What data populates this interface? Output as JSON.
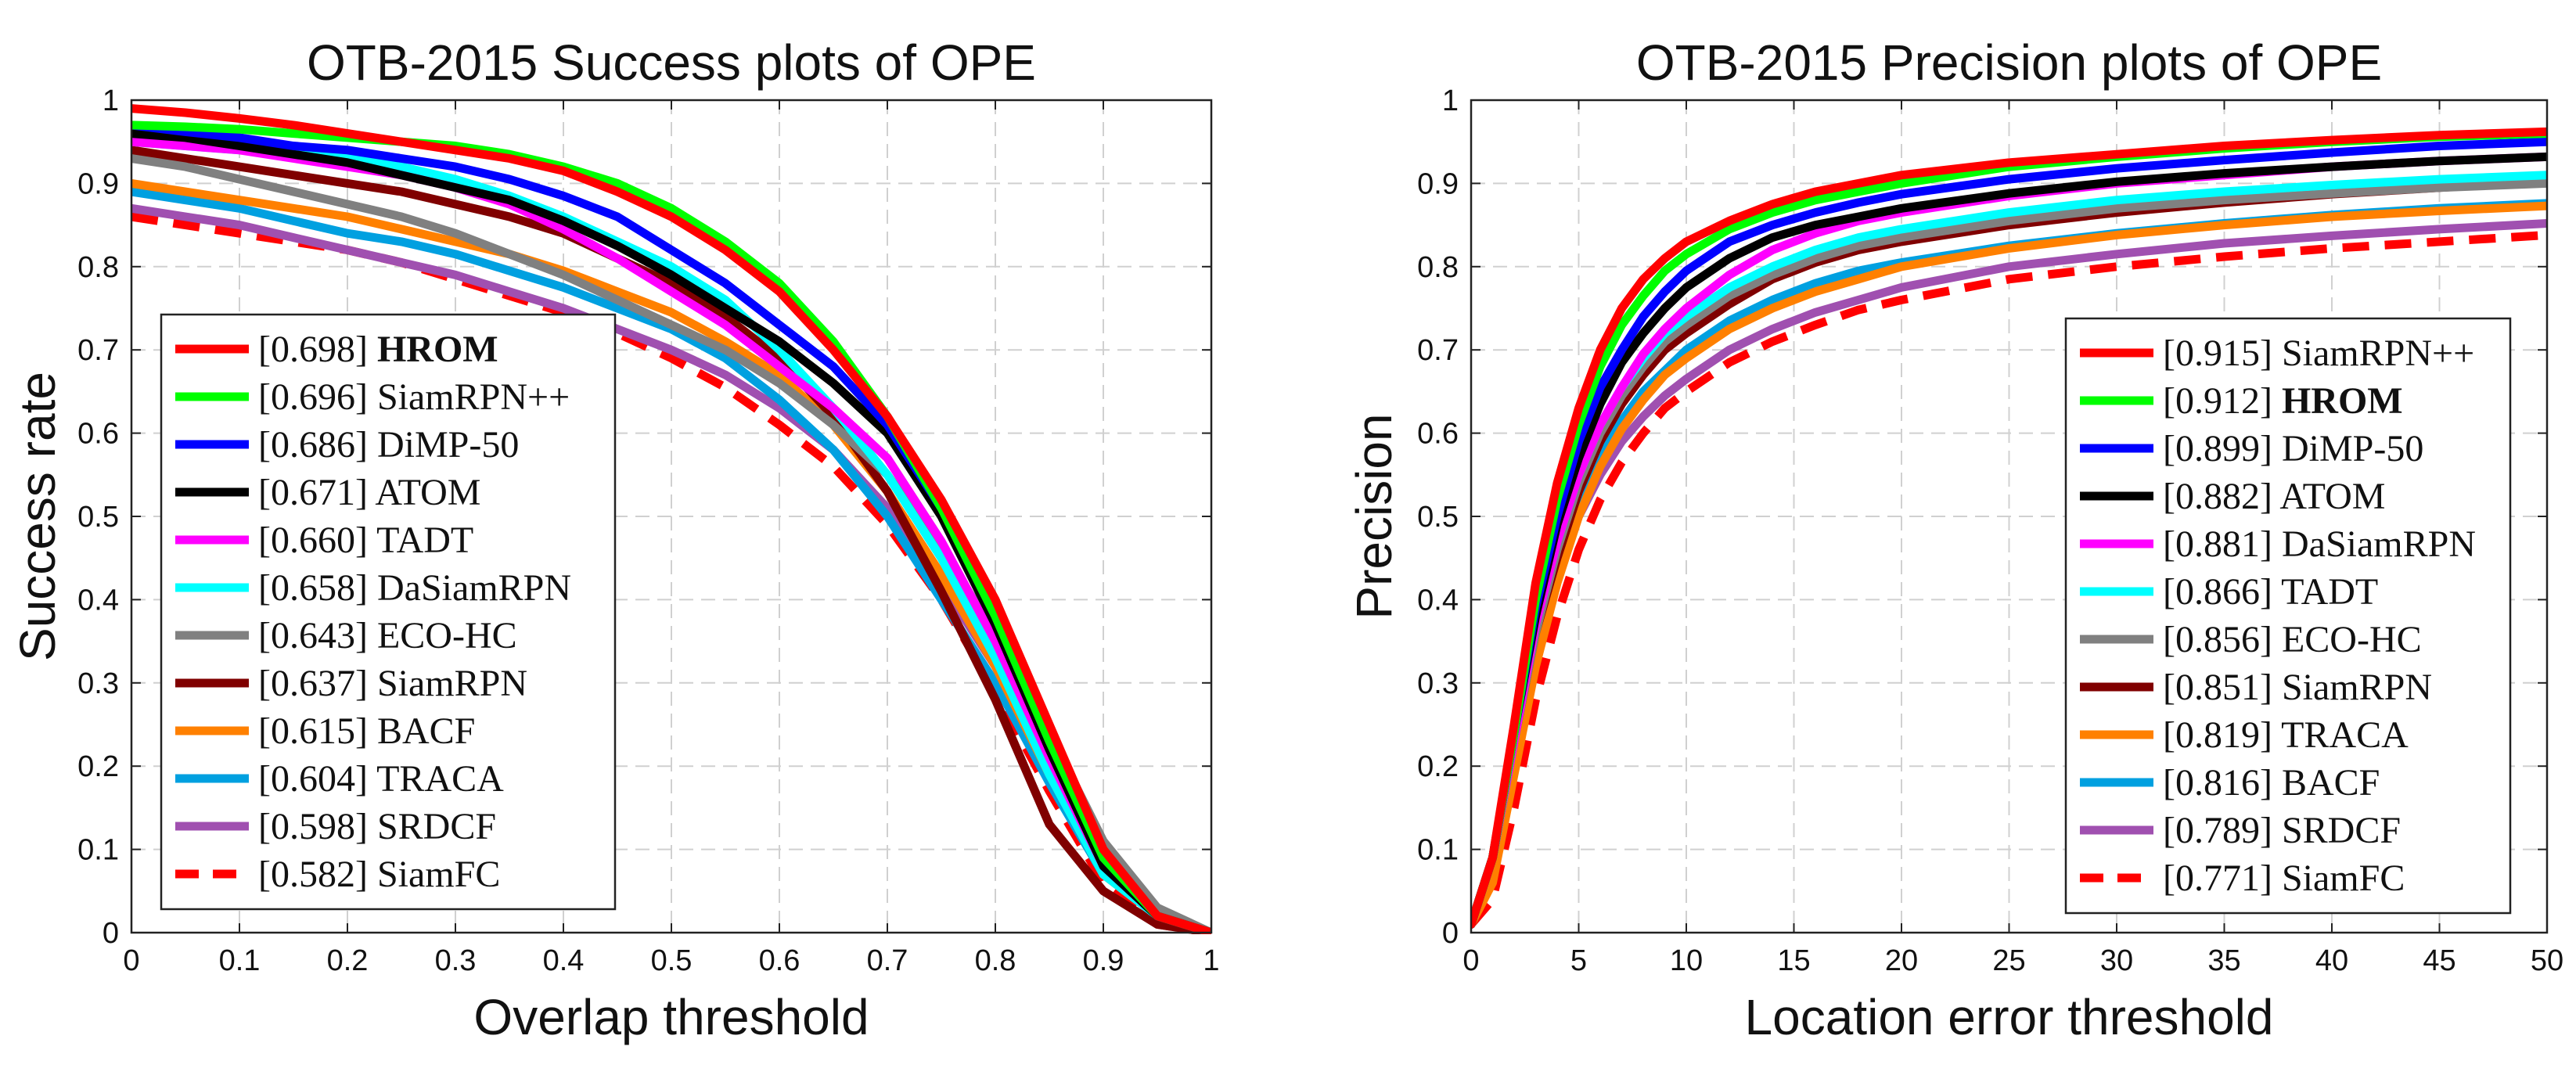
{
  "chart_data": [
    {
      "type": "line",
      "title": "OTB-2015 Success plots of OPE",
      "xlabel": "Overlap threshold",
      "ylabel": "Success rate",
      "xlim": [
        0,
        1
      ],
      "ylim": [
        0,
        1
      ],
      "x_ticks": [
        "0",
        "0.1",
        "0.2",
        "0.3",
        "0.4",
        "0.5",
        "0.6",
        "0.7",
        "0.8",
        "0.9",
        "1"
      ],
      "y_ticks": [
        "0",
        "0.1",
        "0.2",
        "0.3",
        "0.4",
        "0.5",
        "0.6",
        "0.7",
        "0.8",
        "0.9",
        "1"
      ],
      "grid": true,
      "legend_position": "lower-left",
      "x": [
        0,
        0.05,
        0.1,
        0.15,
        0.2,
        0.25,
        0.3,
        0.35,
        0.4,
        0.45,
        0.5,
        0.55,
        0.6,
        0.65,
        0.7,
        0.75,
        0.8,
        0.85,
        0.9,
        0.95,
        1
      ],
      "series": [
        {
          "name": "HROM",
          "score": "[0.698]",
          "bold": true,
          "color": "#ff0000",
          "dash": false,
          "values": [
            0.99,
            0.985,
            0.978,
            0.97,
            0.96,
            0.95,
            0.94,
            0.93,
            0.915,
            0.89,
            0.86,
            0.82,
            0.77,
            0.7,
            0.62,
            0.52,
            0.4,
            0.25,
            0.1,
            0.02,
            0.0
          ]
        },
        {
          "name": "SiamRPN++",
          "score": "[0.696]",
          "bold": false,
          "color": "#00ff00",
          "dash": false,
          "values": [
            0.97,
            0.968,
            0.965,
            0.96,
            0.955,
            0.95,
            0.945,
            0.935,
            0.92,
            0.9,
            0.87,
            0.83,
            0.78,
            0.71,
            0.62,
            0.51,
            0.38,
            0.23,
            0.09,
            0.02,
            0.0
          ]
        },
        {
          "name": "DiMP-50",
          "score": "[0.686]",
          "bold": false,
          "color": "#0000ff",
          "dash": false,
          "values": [
            0.97,
            0.962,
            0.955,
            0.945,
            0.94,
            0.93,
            0.92,
            0.905,
            0.885,
            0.86,
            0.82,
            0.78,
            0.73,
            0.68,
            0.61,
            0.51,
            0.39,
            0.24,
            0.09,
            0.02,
            0.0
          ]
        },
        {
          "name": "ATOM",
          "score": "[0.671]",
          "bold": false,
          "color": "#000000",
          "dash": false,
          "values": [
            0.96,
            0.955,
            0.945,
            0.935,
            0.925,
            0.91,
            0.895,
            0.88,
            0.855,
            0.825,
            0.79,
            0.75,
            0.71,
            0.66,
            0.6,
            0.5,
            0.37,
            0.22,
            0.08,
            0.02,
            0.0
          ]
        },
        {
          "name": "TADT",
          "score": "[0.660]",
          "bold": false,
          "color": "#ff00ff",
          "dash": false,
          "values": [
            0.95,
            0.945,
            0.94,
            0.93,
            0.92,
            0.91,
            0.895,
            0.875,
            0.845,
            0.81,
            0.77,
            0.73,
            0.68,
            0.63,
            0.57,
            0.47,
            0.35,
            0.21,
            0.08,
            0.02,
            0.0
          ]
        },
        {
          "name": "DaSiamRPN",
          "score": "[0.658]",
          "bold": false,
          "color": "#00ffff",
          "dash": false,
          "values": [
            0.95,
            0.945,
            0.94,
            0.935,
            0.93,
            0.92,
            0.905,
            0.885,
            0.86,
            0.83,
            0.8,
            0.76,
            0.7,
            0.63,
            0.55,
            0.45,
            0.33,
            0.19,
            0.07,
            0.02,
            0.0
          ]
        },
        {
          "name": "ECO-HC",
          "score": "[0.643]",
          "bold": false,
          "color": "#808080",
          "dash": false,
          "values": [
            0.93,
            0.92,
            0.905,
            0.89,
            0.875,
            0.86,
            0.84,
            0.815,
            0.79,
            0.76,
            0.73,
            0.7,
            0.66,
            0.61,
            0.55,
            0.46,
            0.36,
            0.24,
            0.11,
            0.03,
            0.0
          ]
        },
        {
          "name": "SiamRPN",
          "score": "[0.637]",
          "bold": false,
          "color": "#800000",
          "dash": false,
          "values": [
            0.94,
            0.93,
            0.92,
            0.91,
            0.9,
            0.89,
            0.875,
            0.86,
            0.84,
            0.81,
            0.78,
            0.74,
            0.69,
            0.62,
            0.53,
            0.41,
            0.28,
            0.13,
            0.05,
            0.01,
            0.0
          ]
        },
        {
          "name": "BACF",
          "score": "[0.615]",
          "bold": false,
          "color": "#ff8000",
          "dash": false,
          "values": [
            0.9,
            0.89,
            0.88,
            0.87,
            0.86,
            0.845,
            0.83,
            0.815,
            0.795,
            0.77,
            0.745,
            0.71,
            0.67,
            0.61,
            0.53,
            0.43,
            0.32,
            0.19,
            0.07,
            0.02,
            0.0
          ]
        },
        {
          "name": "TRACA",
          "score": "[0.604]",
          "bold": false,
          "color": "#00a0e0",
          "dash": false,
          "values": [
            0.89,
            0.88,
            0.87,
            0.855,
            0.84,
            0.83,
            0.815,
            0.795,
            0.775,
            0.75,
            0.725,
            0.69,
            0.64,
            0.58,
            0.5,
            0.4,
            0.3,
            0.18,
            0.07,
            0.02,
            0.0
          ]
        },
        {
          "name": "SRDCF",
          "score": "[0.598]",
          "bold": false,
          "color": "#a050b0",
          "dash": false,
          "values": [
            0.87,
            0.86,
            0.85,
            0.835,
            0.82,
            0.805,
            0.79,
            0.77,
            0.75,
            0.725,
            0.7,
            0.67,
            0.63,
            0.58,
            0.51,
            0.42,
            0.32,
            0.2,
            0.08,
            0.02,
            0.0
          ]
        },
        {
          "name": "SiamFC",
          "score": "[0.582]",
          "bold": false,
          "color": "#ff0000",
          "dash": true,
          "values": [
            0.86,
            0.85,
            0.84,
            0.83,
            0.82,
            0.805,
            0.785,
            0.765,
            0.745,
            0.72,
            0.69,
            0.655,
            0.61,
            0.56,
            0.49,
            0.4,
            0.29,
            0.17,
            0.06,
            0.01,
            0.0
          ]
        }
      ]
    },
    {
      "type": "line",
      "title": "OTB-2015 Precision plots of OPE",
      "xlabel": "Location error threshold",
      "ylabel": "Precision",
      "xlim": [
        0,
        50
      ],
      "ylim": [
        0,
        1
      ],
      "x_ticks": [
        "0",
        "5",
        "10",
        "15",
        "20",
        "25",
        "30",
        "35",
        "40",
        "45",
        "50"
      ],
      "y_ticks": [
        "0",
        "0.1",
        "0.2",
        "0.3",
        "0.4",
        "0.5",
        "0.6",
        "0.7",
        "0.8",
        "0.9",
        "1"
      ],
      "grid": true,
      "legend_position": "lower-right",
      "x": [
        0,
        1,
        2,
        3,
        4,
        5,
        6,
        7,
        8,
        9,
        10,
        12,
        14,
        16,
        18,
        20,
        25,
        30,
        35,
        40,
        45,
        50
      ],
      "series": [
        {
          "name": "SiamRPN++",
          "score": "[0.915]",
          "bold": false,
          "color": "#ff0000",
          "dash": false,
          "values": [
            0.01,
            0.09,
            0.25,
            0.42,
            0.54,
            0.63,
            0.7,
            0.75,
            0.785,
            0.81,
            0.83,
            0.855,
            0.875,
            0.89,
            0.9,
            0.91,
            0.925,
            0.935,
            0.945,
            0.952,
            0.958,
            0.962
          ]
        },
        {
          "name": "HROM",
          "score": "[0.912]",
          "bold": true,
          "color": "#00ff00",
          "dash": false,
          "values": [
            0.01,
            0.09,
            0.24,
            0.4,
            0.52,
            0.61,
            0.68,
            0.73,
            0.765,
            0.795,
            0.815,
            0.845,
            0.865,
            0.88,
            0.89,
            0.9,
            0.92,
            0.932,
            0.942,
            0.95,
            0.956,
            0.96
          ]
        },
        {
          "name": "DiMP-50",
          "score": "[0.899]",
          "bold": false,
          "color": "#0000ff",
          "dash": false,
          "values": [
            0.01,
            0.09,
            0.24,
            0.39,
            0.5,
            0.59,
            0.655,
            0.7,
            0.74,
            0.77,
            0.795,
            0.83,
            0.85,
            0.865,
            0.877,
            0.887,
            0.905,
            0.918,
            0.928,
            0.937,
            0.945,
            0.95
          ]
        },
        {
          "name": "ATOM",
          "score": "[0.882]",
          "bold": false,
          "color": "#000000",
          "dash": false,
          "values": [
            0.01,
            0.09,
            0.24,
            0.38,
            0.49,
            0.57,
            0.635,
            0.685,
            0.72,
            0.75,
            0.775,
            0.81,
            0.835,
            0.85,
            0.86,
            0.87,
            0.888,
            0.902,
            0.912,
            0.92,
            0.927,
            0.932
          ]
        },
        {
          "name": "DaSiamRPN",
          "score": "[0.881]",
          "bold": false,
          "color": "#ff00ff",
          "dash": false,
          "values": [
            0.01,
            0.09,
            0.23,
            0.37,
            0.47,
            0.55,
            0.61,
            0.655,
            0.695,
            0.725,
            0.75,
            0.79,
            0.82,
            0.84,
            0.855,
            0.865,
            0.885,
            0.9,
            0.91,
            0.92,
            0.927,
            0.932
          ]
        },
        {
          "name": "TADT",
          "score": "[0.866]",
          "bold": false,
          "color": "#00ffff",
          "dash": false,
          "values": [
            0.01,
            0.09,
            0.23,
            0.37,
            0.47,
            0.55,
            0.61,
            0.655,
            0.69,
            0.72,
            0.74,
            0.775,
            0.8,
            0.82,
            0.835,
            0.845,
            0.865,
            0.88,
            0.89,
            0.898,
            0.905,
            0.91
          ]
        },
        {
          "name": "ECO-HC",
          "score": "[0.856]",
          "bold": false,
          "color": "#808080",
          "dash": false,
          "values": [
            0.01,
            0.09,
            0.23,
            0.36,
            0.46,
            0.54,
            0.6,
            0.645,
            0.68,
            0.71,
            0.73,
            0.765,
            0.79,
            0.81,
            0.825,
            0.835,
            0.855,
            0.87,
            0.88,
            0.888,
            0.895,
            0.9
          ]
        },
        {
          "name": "SiamRPN",
          "score": "[0.851]",
          "bold": false,
          "color": "#800000",
          "dash": false,
          "values": [
            0.01,
            0.09,
            0.23,
            0.36,
            0.45,
            0.53,
            0.59,
            0.635,
            0.67,
            0.7,
            0.72,
            0.755,
            0.785,
            0.805,
            0.82,
            0.83,
            0.85,
            0.865,
            0.877,
            0.887,
            0.895,
            0.902
          ]
        },
        {
          "name": "TRACA",
          "score": "[0.819]",
          "bold": false,
          "color": "#ff8000",
          "dash": false,
          "values": [
            0.01,
            0.06,
            0.19,
            0.32,
            0.42,
            0.5,
            0.56,
            0.605,
            0.64,
            0.67,
            0.69,
            0.725,
            0.75,
            0.77,
            0.785,
            0.8,
            0.822,
            0.838,
            0.85,
            0.86,
            0.867,
            0.873
          ]
        },
        {
          "name": "BACF",
          "score": "[0.816]",
          "bold": false,
          "color": "#00a0e0",
          "dash": false,
          "values": [
            0.01,
            0.09,
            0.22,
            0.35,
            0.44,
            0.51,
            0.57,
            0.615,
            0.65,
            0.675,
            0.7,
            0.735,
            0.76,
            0.78,
            0.795,
            0.805,
            0.825,
            0.84,
            0.852,
            0.862,
            0.87,
            0.876
          ]
        },
        {
          "name": "SRDCF",
          "score": "[0.789]",
          "bold": false,
          "color": "#a050b0",
          "dash": false,
          "values": [
            0.01,
            0.09,
            0.22,
            0.34,
            0.43,
            0.5,
            0.55,
            0.59,
            0.62,
            0.645,
            0.665,
            0.7,
            0.725,
            0.745,
            0.76,
            0.775,
            0.8,
            0.815,
            0.828,
            0.837,
            0.845,
            0.852
          ]
        },
        {
          "name": "SiamFC",
          "score": "[0.771]",
          "bold": false,
          "color": "#ff0000",
          "dash": true,
          "values": [
            0.01,
            0.04,
            0.15,
            0.28,
            0.38,
            0.46,
            0.52,
            0.565,
            0.6,
            0.63,
            0.65,
            0.685,
            0.71,
            0.73,
            0.748,
            0.76,
            0.785,
            0.8,
            0.812,
            0.822,
            0.83,
            0.838
          ]
        }
      ]
    }
  ]
}
